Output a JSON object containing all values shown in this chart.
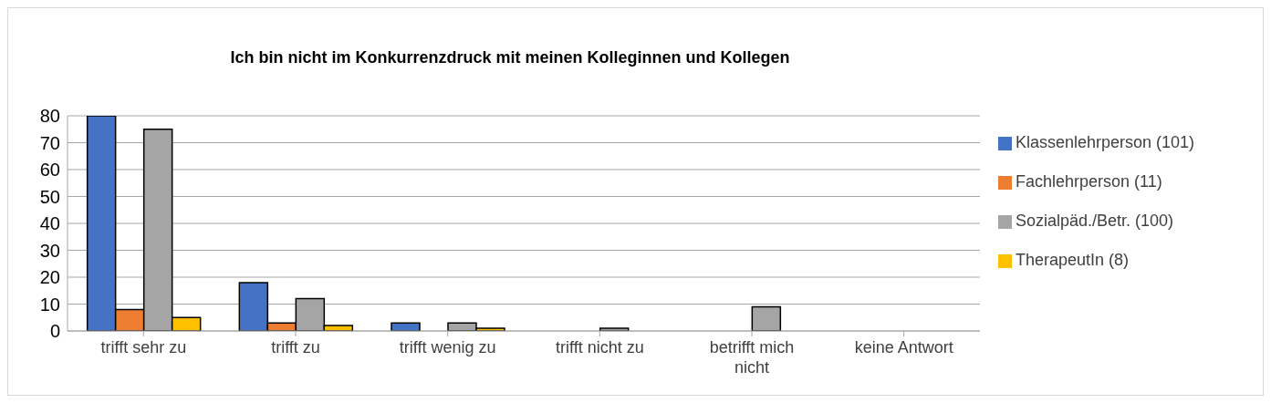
{
  "chart_data": {
    "type": "bar",
    "title": "Ich bin nicht im Konkurrenzdruck mit meinen Kolleginnen und Kollegen",
    "categories": [
      "trifft sehr zu",
      "trifft zu",
      "trifft wenig zu",
      "trifft nicht zu",
      "betrifft mich nicht",
      "keine Antwort"
    ],
    "series": [
      {
        "name": "Klassenlehrperson (101)",
        "color": "#4472c4",
        "values": [
          80,
          18,
          3,
          0,
          0,
          0
        ]
      },
      {
        "name": "Fachlehrperson (11)",
        "color": "#ed7d31",
        "values": [
          8,
          3,
          0,
          0,
          0,
          0
        ]
      },
      {
        "name": "Sozialpäd./Betr. (100)",
        "color": "#a5a5a5",
        "values": [
          75,
          12,
          3,
          1,
          9,
          0
        ]
      },
      {
        "name": "TherapeutIn (8)",
        "color": "#ffc000",
        "values": [
          5,
          2,
          1,
          0,
          0,
          0
        ]
      }
    ],
    "ylim": [
      0,
      80
    ],
    "yticks": [
      0,
      10,
      20,
      30,
      40,
      50,
      60,
      70,
      80
    ],
    "grid": "y",
    "legend": "right"
  }
}
